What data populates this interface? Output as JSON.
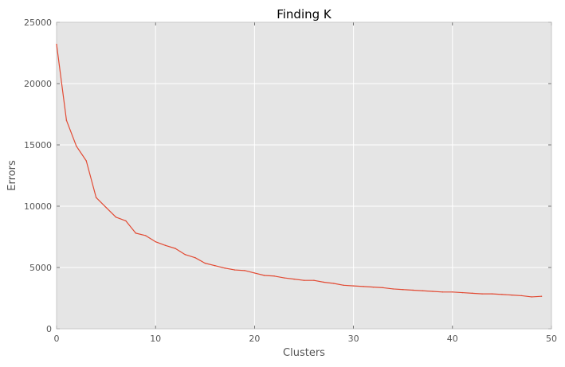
{
  "chart_data": {
    "type": "line",
    "title": "Finding K",
    "xlabel": "Clusters",
    "ylabel": "Errors",
    "xlim": [
      0,
      50
    ],
    "ylim": [
      0,
      25000
    ],
    "xticks": [
      0,
      10,
      20,
      30,
      40,
      50
    ],
    "yticks": [
      0,
      5000,
      10000,
      15000,
      20000,
      25000
    ],
    "grid": true,
    "colors": {
      "plot_background": "#e5e5e5",
      "grid": "#ffffff",
      "line": "#e24a33"
    },
    "series": [
      {
        "x": [
          0,
          1,
          2,
          3,
          4,
          5,
          6,
          7,
          8,
          9,
          10,
          11,
          12,
          13,
          14,
          15,
          16,
          17,
          18,
          19,
          20,
          21,
          22,
          23,
          24,
          25,
          26,
          27,
          28,
          29,
          30,
          31,
          32,
          33,
          34,
          35,
          36,
          37,
          38,
          39,
          40,
          41,
          42,
          43,
          44,
          45,
          46,
          47,
          48,
          49
        ],
        "y": [
          23200,
          17000,
          14900,
          13700,
          10700,
          9900,
          9100,
          8800,
          7800,
          7600,
          7100,
          6800,
          6550,
          6050,
          5800,
          5350,
          5150,
          4950,
          4800,
          4750,
          4550,
          4350,
          4300,
          4150,
          4050,
          3950,
          3950,
          3800,
          3700,
          3550,
          3500,
          3450,
          3400,
          3350,
          3250,
          3200,
          3150,
          3100,
          3050,
          3000,
          3000,
          2950,
          2900,
          2850,
          2850,
          2800,
          2750,
          2700,
          2600,
          2650
        ]
      }
    ]
  }
}
